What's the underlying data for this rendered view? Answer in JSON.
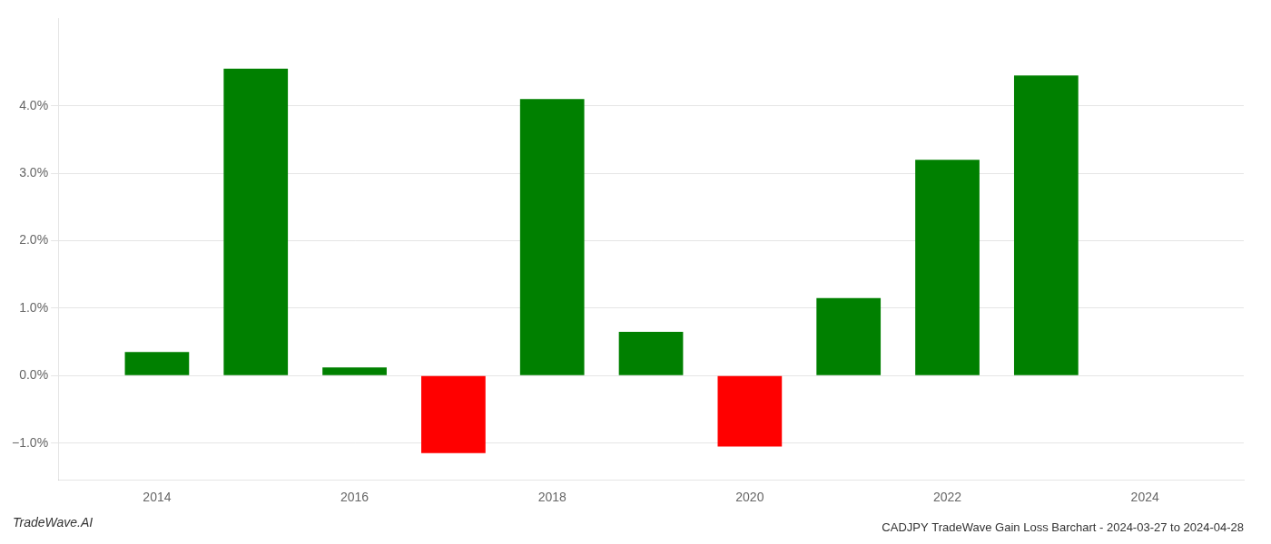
{
  "chart_data": {
    "type": "bar",
    "title": "CADJPY TradeWave Gain Loss Barchart - 2024-03-27 to 2024-04-28",
    "annotations": [
      "TradeWave.AI"
    ],
    "x": [
      2014,
      2015,
      2016,
      2017,
      2018,
      2019,
      2020,
      2021,
      2022,
      2023
    ],
    "values": [
      0.0035,
      0.0455,
      0.0012,
      -0.0115,
      0.041,
      0.0065,
      -0.0105,
      0.0115,
      0.032,
      0.0445
    ],
    "colors": [
      "#008000",
      "#008000",
      "#008000",
      "#ff0000",
      "#008000",
      "#008000",
      "#ff0000",
      "#008000",
      "#008000",
      "#008000"
    ],
    "xlim": [
      2013.0,
      2025.0
    ],
    "xticks": [
      2014,
      2016,
      2018,
      2020,
      2022,
      2024
    ],
    "ylim": [
      -0.0155,
      0.053
    ],
    "yticks": [
      {
        "value": -0.01,
        "label": "−1.0%"
      },
      {
        "value": 0.0,
        "label": "0.0%"
      },
      {
        "value": 0.01,
        "label": "1.0%"
      },
      {
        "value": 0.02,
        "label": "2.0%"
      },
      {
        "value": 0.03,
        "label": "3.0%"
      },
      {
        "value": 0.04,
        "label": "4.0%"
      }
    ],
    "grid": true
  }
}
